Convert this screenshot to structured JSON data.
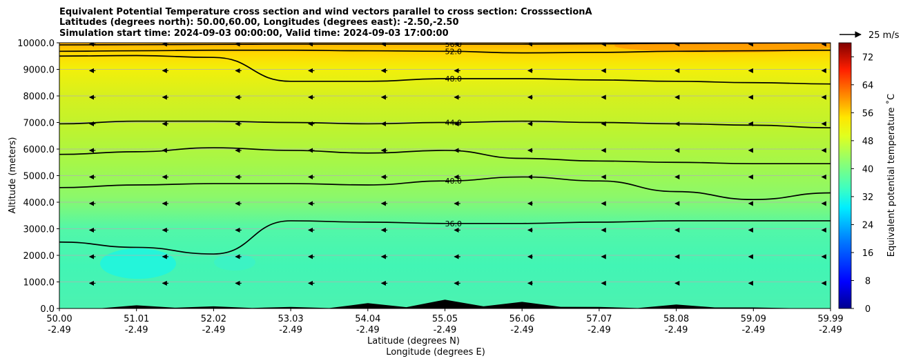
{
  "chart_data": {
    "type": "contour-cross-section",
    "title_lines": [
      "Equivalent Potential Temperature cross section and wind vectors parallel to cross section: CrosssectionA",
      "Latitudes (degrees north): 50.00,60.00, Longitudes (degrees east): -2.50,-2.50",
      "Simulation start time: 2024-09-03 00:00:00, Valid time: 2024-09-03 17:00:00"
    ],
    "ylabel": "Altitude (meters)",
    "xlabel_lat": "Latitude (degrees N)",
    "xlabel_lon": "Longitude (degrees E)",
    "ylim": [
      0,
      10000
    ],
    "y_ticks": [
      {
        "value": 0,
        "label": "0.0"
      },
      {
        "value": 1000,
        "label": "1000.0"
      },
      {
        "value": 2000,
        "label": "2000.0"
      },
      {
        "value": 3000,
        "label": "3000.0"
      },
      {
        "value": 4000,
        "label": "4000.0"
      },
      {
        "value": 5000,
        "label": "5000.0"
      },
      {
        "value": 6000,
        "label": "6000.0"
      },
      {
        "value": 7000,
        "label": "7000.0"
      },
      {
        "value": 8000,
        "label": "8000.0"
      },
      {
        "value": 9000,
        "label": "9000.0"
      },
      {
        "value": 10000,
        "label": "10000.0"
      }
    ],
    "xlim": [
      50.0,
      59.99
    ],
    "x_ticks": [
      {
        "lat": "50.00",
        "lon": "-2.49"
      },
      {
        "lat": "51.01",
        "lon": "-2.49"
      },
      {
        "lat": "52.02",
        "lon": "-2.49"
      },
      {
        "lat": "53.03",
        "lon": "-2.49"
      },
      {
        "lat": "54.04",
        "lon": "-2.49"
      },
      {
        "lat": "55.05",
        "lon": "-2.49"
      },
      {
        "lat": "56.06",
        "lon": "-2.49"
      },
      {
        "lat": "57.07",
        "lon": "-2.49"
      },
      {
        "lat": "58.08",
        "lon": "-2.49"
      },
      {
        "lat": "59.09",
        "lon": "-2.49"
      },
      {
        "lat": "59.99",
        "lon": "-2.49"
      }
    ],
    "colorbar": {
      "label": "Equivalent potential temperature ˚C",
      "min": 0,
      "max": 76,
      "ticks": [
        "0",
        "8",
        "16",
        "24",
        "32",
        "40",
        "48",
        "56",
        "64",
        "72"
      ]
    },
    "quiver_key": {
      "label": "25 m/s",
      "speed": 25
    },
    "contours": [
      {
        "level": 56,
        "label": "56.0",
        "heights": [
          9920,
          9930,
          9940,
          9950,
          9950,
          9950,
          9950,
          9960,
          9980,
          9990,
          10000
        ]
      },
      {
        "level": 52,
        "label": "52.0",
        "heights": [
          9680,
          9700,
          9720,
          9720,
          9700,
          9680,
          9620,
          9640,
          9680,
          9700,
          9720
        ]
      },
      {
        "level": 48,
        "label": "48.0",
        "heights": [
          9500,
          9520,
          9450,
          8550,
          8550,
          8650,
          8650,
          8600,
          8550,
          8500,
          8450
        ]
      },
      {
        "level": 44,
        "label": "44.0",
        "heights": [
          6950,
          7050,
          7050,
          7000,
          6950,
          7000,
          7050,
          7000,
          6950,
          6900,
          6800
        ]
      },
      {
        "level": 42,
        "label": "",
        "heights": [
          5800,
          5900,
          6050,
          5950,
          5850,
          5950,
          5650,
          5550,
          5500,
          5450,
          5450
        ]
      },
      {
        "level": 40,
        "label": "40.0",
        "heights": [
          4550,
          4650,
          4700,
          4700,
          4650,
          4800,
          4950,
          4800,
          4400,
          4100,
          4350
        ]
      },
      {
        "level": 36,
        "label": "36.0",
        "heights": [
          2500,
          2300,
          2050,
          3300,
          3250,
          3200,
          3200,
          3250,
          3300,
          3300,
          3300
        ]
      }
    ],
    "wind": {
      "u_ms": -7,
      "rows": 10,
      "cols": 11,
      "note": "vectors point toward lower latitude"
    },
    "terrain_peaks_m": [
      0,
      120,
      80,
      60,
      200,
      330,
      250,
      60,
      150,
      40,
      0
    ]
  }
}
